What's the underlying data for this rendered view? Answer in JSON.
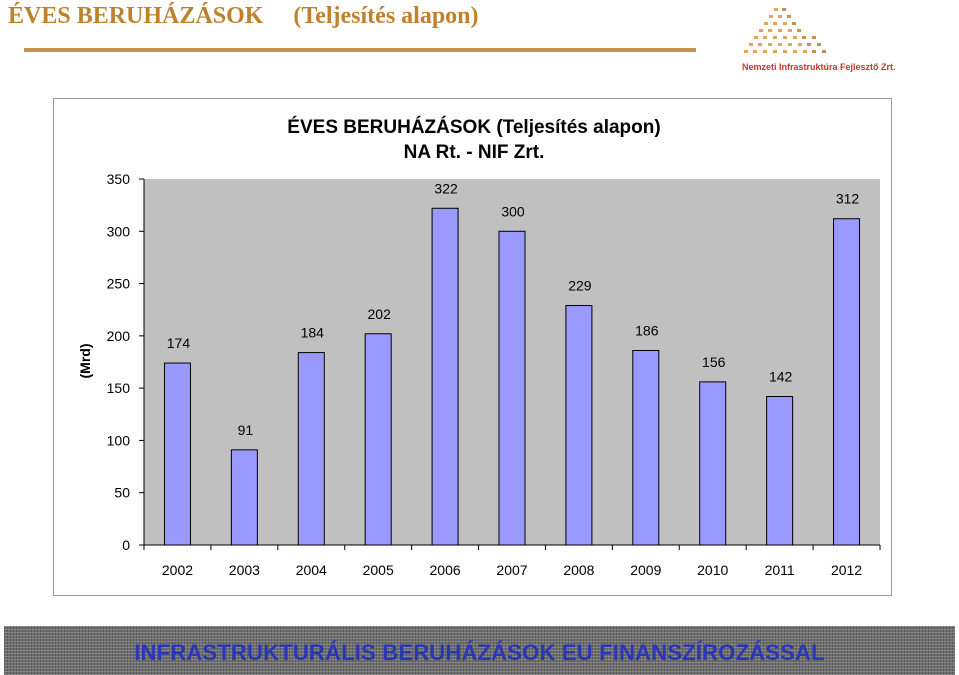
{
  "header": {
    "title": "ÉVES BERUHÁZÁSOK",
    "subtitle": "(Teljesítés alapon)"
  },
  "logo": {
    "text": "Nemzeti Infrastruktúra Fejlesztő Zrt.",
    "icon": "pyramid-dots-logo"
  },
  "chart_data": {
    "type": "bar",
    "title": "ÉVES BERUHÁZÁSOK (Teljesítés alapon)",
    "subtitle": "NA Rt. - NIF Zrt.",
    "ylabel": "(Mrd)",
    "xlabel": "",
    "categories": [
      "2002",
      "2003",
      "2004",
      "2005",
      "2006",
      "2007",
      "2008",
      "2009",
      "2010",
      "2011",
      "2012"
    ],
    "values": [
      174,
      91,
      184,
      202,
      322,
      300,
      229,
      186,
      156,
      142,
      312
    ],
    "value_labels": [
      "174",
      "91",
      "184",
      "202",
      "322",
      "300",
      "229",
      "186",
      "156",
      "142",
      "312"
    ],
    "ylim": [
      0,
      350
    ],
    "yticks": [
      0,
      50,
      100,
      150,
      200,
      250,
      300,
      350
    ],
    "ytick_labels": [
      "0",
      "50",
      "100",
      "150",
      "200",
      "250",
      "300",
      "350"
    ],
    "bar_color": "#9999ff",
    "plot_background": "#c0c0c0",
    "grid": false,
    "legend": "none"
  },
  "banner": {
    "text": "INFRASTRUKTURÁLIS BERUHÁZÁSOK EU FINANSZÍROZÁSSAL"
  }
}
